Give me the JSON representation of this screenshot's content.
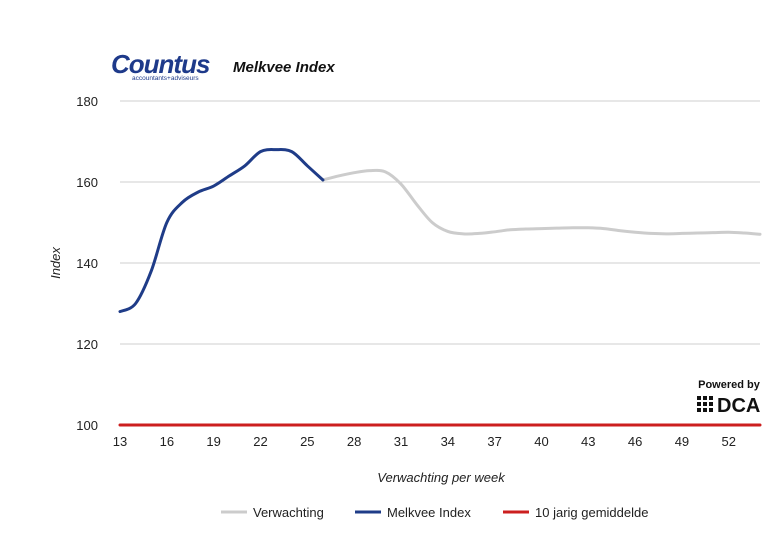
{
  "logo": {
    "name": "Countus",
    "tagline": "accountants+adviseurs"
  },
  "powered_by": {
    "label": "Powered by",
    "brand": "DCA"
  },
  "chart_data": {
    "type": "line",
    "title": "Melkvee Index",
    "xlabel": "Verwachting per week",
    "ylabel": "Index",
    "xlim": [
      13,
      54
    ],
    "ylim": [
      100,
      180
    ],
    "x_ticks": [
      13,
      16,
      19,
      22,
      25,
      28,
      31,
      34,
      37,
      40,
      43,
      46,
      49,
      52
    ],
    "y_ticks": [
      100,
      120,
      140,
      160,
      180
    ],
    "grid": true,
    "legend_position": "bottom",
    "series": [
      {
        "name": "Verwachting",
        "color": "#cccccc",
        "x": [
          26,
          27,
          28,
          29,
          30,
          31,
          32,
          33,
          34,
          35,
          36,
          37,
          38,
          39,
          40,
          41,
          42,
          43,
          44,
          45,
          46,
          47,
          48,
          49,
          50,
          51,
          52,
          53,
          54
        ],
        "y": [
          160.5,
          161.5,
          162.3,
          162.8,
          162.5,
          159.5,
          154.5,
          150,
          147.8,
          147.2,
          147.3,
          147.7,
          148.2,
          148.4,
          148.5,
          148.6,
          148.7,
          148.7,
          148.5,
          148.0,
          147.6,
          147.3,
          147.2,
          147.3,
          147.4,
          147.5,
          147.6,
          147.4,
          147.1
        ]
      },
      {
        "name": "Melkvee Index",
        "color": "#1f3c88",
        "x": [
          13,
          14,
          15,
          16,
          17,
          18,
          19,
          20,
          21,
          22,
          23,
          24,
          25,
          26
        ],
        "y": [
          128,
          130,
          138,
          150,
          155,
          157.5,
          159,
          161.5,
          164,
          167.5,
          168,
          167.5,
          164,
          160.5
        ]
      },
      {
        "name": "10 jarig gemiddelde",
        "color": "#cc1f1f",
        "x": [
          13,
          54
        ],
        "y": [
          100,
          100
        ]
      }
    ]
  }
}
